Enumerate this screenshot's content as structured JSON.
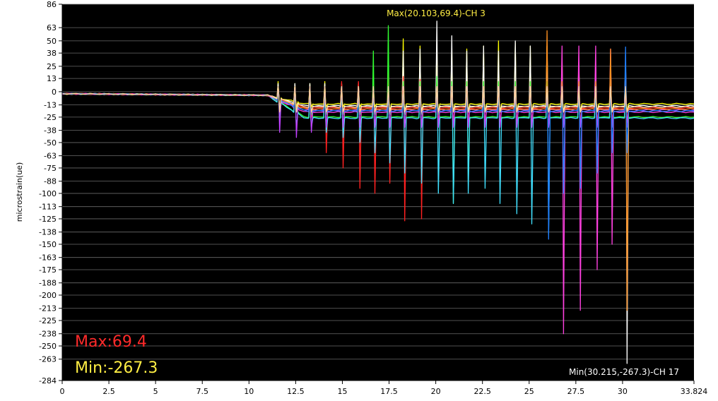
{
  "chart_data": {
    "type": "line",
    "ylabel": "microstrain(ue)",
    "xlabel": "",
    "xlim": [
      0,
      33.824
    ],
    "ylim": [
      -284,
      86
    ],
    "x_ticks": [
      "0",
      "2.5",
      "5",
      "7.5",
      "10",
      "12.5",
      "15",
      "17.5",
      "20",
      "22.5",
      "25",
      "27.5",
      "30",
      "33.824"
    ],
    "x_tick_values": [
      0,
      2.5,
      5,
      7.5,
      10,
      12.5,
      15,
      17.5,
      20,
      22.5,
      25,
      27.5,
      30,
      33.824
    ],
    "y_ticks": [
      "86",
      "63",
      "50",
      "38",
      "25",
      "13",
      "0",
      "-13",
      "-25",
      "-38",
      "-50",
      "-63",
      "-75",
      "-88",
      "-100",
      "-113",
      "-125",
      "-138",
      "-150",
      "-163",
      "-175",
      "-188",
      "-200",
      "-213",
      "-225",
      "-238",
      "-250",
      "-263",
      "-284"
    ],
    "y_tick_values": [
      86,
      63,
      50,
      38,
      25,
      13,
      0,
      -13,
      -25,
      -38,
      -50,
      -63,
      -75,
      -88,
      -100,
      -113,
      -125,
      -138,
      -150,
      -163,
      -175,
      -188,
      -200,
      -213,
      -225,
      -238,
      -250,
      -263,
      -284
    ],
    "grid": true,
    "background": "#000000",
    "annotations": {
      "max_label": "Max(20.103,69.4)-CH 3",
      "max_point": {
        "x": 20.103,
        "y": 69.4
      },
      "min_label": "Min(30.215,-267.3)-CH 17",
      "min_point": {
        "x": 30.215,
        "y": -267.3
      },
      "max_summary": "Max:69.4",
      "min_summary": "Min:-267.3"
    },
    "event_times": [
      11.6,
      12.5,
      13.3,
      14.1,
      15.0,
      15.9,
      16.7,
      17.5,
      18.3,
      19.2,
      20.1,
      20.9,
      21.7,
      22.6,
      23.4,
      24.3,
      25.1,
      26.0,
      26.8,
      27.7,
      28.6,
      29.4,
      30.2
    ],
    "series": [
      {
        "color": "#ffff00",
        "baseline_end": -12,
        "peaks": [
          10,
          8,
          8,
          10,
          8,
          8,
          8,
          8,
          52,
          45,
          50,
          45,
          42,
          45,
          50,
          48,
          45,
          45,
          30,
          28,
          25,
          25,
          25
        ],
        "dips": [
          -20,
          -15,
          -15,
          -15,
          -15,
          -15,
          -15,
          -20,
          -20,
          -20,
          -20,
          -20,
          -20,
          -20,
          -20,
          -20,
          -20,
          -20,
          -20,
          -20,
          -20,
          -20,
          -20
        ]
      },
      {
        "color": "#ffffff",
        "baseline_end": -14,
        "peaks": [
          8,
          8,
          8,
          8,
          8,
          8,
          8,
          8,
          40,
          42,
          69.4,
          55,
          40,
          45,
          40,
          50,
          45,
          45,
          25,
          25,
          25,
          25,
          25
        ],
        "dips": [
          -20,
          -20,
          -20,
          -20,
          -20,
          -20,
          -20,
          -20,
          -20,
          -20,
          -20,
          -20,
          -20,
          -20,
          -20,
          -20,
          -20,
          -20,
          -20,
          -20,
          -20,
          -20,
          -267.3
        ]
      },
      {
        "color": "#ff2020",
        "baseline_end": -16,
        "peaks": [
          5,
          5,
          5,
          5,
          10,
          10,
          12,
          20,
          15,
          12,
          12,
          10,
          10,
          10,
          10,
          10,
          10,
          10,
          10,
          10,
          10,
          10,
          10
        ],
        "dips": [
          -20,
          -20,
          -25,
          -60,
          -75,
          -95,
          -100,
          -90,
          -127,
          -125,
          -30,
          -30,
          -30,
          -30,
          -30,
          -30,
          -30,
          -30,
          -30,
          -30,
          -30,
          -30,
          -30
        ]
      },
      {
        "color": "#30ff30",
        "baseline_end": -25,
        "peaks": [
          5,
          5,
          5,
          5,
          5,
          5,
          40,
          65,
          10,
          10,
          15,
          10,
          10,
          10,
          10,
          10,
          10,
          10,
          10,
          10,
          10,
          10,
          10
        ],
        "dips": [
          -20,
          -20,
          -20,
          -20,
          -20,
          -20,
          -20,
          -20,
          -20,
          -20,
          -20,
          -110,
          -90,
          -30,
          -30,
          -30,
          -30,
          -30,
          -30,
          -30,
          -30,
          -30,
          -30
        ]
      },
      {
        "color": "#40e0ff",
        "baseline_end": -26,
        "peaks": [
          5,
          5,
          5,
          5,
          5,
          5,
          5,
          5,
          5,
          5,
          5,
          5,
          5,
          5,
          5,
          5,
          5,
          5,
          5,
          5,
          5,
          5,
          5
        ],
        "dips": [
          -30,
          -35,
          -35,
          -40,
          -45,
          -50,
          -60,
          -70,
          -80,
          -90,
          -100,
          -110,
          -100,
          -95,
          -110,
          -120,
          -130,
          -140,
          -30,
          -30,
          -30,
          -30,
          -30
        ]
      },
      {
        "color": "#c040ff",
        "baseline_end": -18,
        "peaks": [
          5,
          5,
          5,
          5,
          5,
          5,
          5,
          5,
          5,
          5,
          5,
          5,
          5,
          5,
          5,
          5,
          5,
          5,
          5,
          5,
          5,
          5,
          5
        ],
        "dips": [
          -40,
          -45,
          -40,
          -35,
          -35,
          -35,
          -35,
          -35,
          -35,
          -35,
          -35,
          -35,
          -35,
          -35,
          -35,
          -35,
          -35,
          -35,
          -35,
          -35,
          -35,
          -35,
          -35
        ]
      },
      {
        "color": "#ff40e0",
        "baseline_end": -20,
        "peaks": [
          5,
          5,
          5,
          5,
          5,
          5,
          5,
          5,
          5,
          5,
          5,
          5,
          5,
          5,
          5,
          5,
          5,
          5,
          45,
          45,
          45,
          42,
          30
        ],
        "dips": [
          -20,
          -20,
          -20,
          -20,
          -20,
          -20,
          -20,
          -20,
          -20,
          -20,
          -20,
          -20,
          -20,
          -20,
          -20,
          -20,
          -20,
          -20,
          -238,
          -215,
          -175,
          -150,
          -30
        ]
      },
      {
        "color": "#ff9020",
        "baseline_end": -17,
        "peaks": [
          5,
          5,
          5,
          5,
          5,
          5,
          5,
          5,
          5,
          5,
          5,
          5,
          5,
          5,
          5,
          5,
          5,
          60,
          10,
          10,
          10,
          42,
          10
        ],
        "dips": [
          -20,
          -20,
          -20,
          -20,
          -20,
          -20,
          -20,
          -20,
          -20,
          -20,
          -20,
          -20,
          -20,
          -20,
          -20,
          -20,
          -20,
          -20,
          -20,
          -20,
          -20,
          -20,
          -215
        ]
      },
      {
        "color": "#2080ff",
        "baseline_end": -19,
        "peaks": [
          5,
          5,
          5,
          5,
          5,
          5,
          5,
          5,
          5,
          5,
          5,
          5,
          5,
          5,
          5,
          5,
          5,
          5,
          5,
          5,
          5,
          5,
          44
        ],
        "dips": [
          -20,
          -20,
          -20,
          -20,
          -20,
          -20,
          -20,
          -20,
          -20,
          -20,
          -20,
          -20,
          -20,
          -20,
          -20,
          -20,
          -20,
          -145,
          -100,
          -95,
          -80,
          -60,
          -60
        ]
      },
      {
        "color": "#ffd0a0",
        "baseline_end": -15,
        "peaks": [
          5,
          5,
          5,
          5,
          5,
          5,
          5,
          5,
          5,
          5,
          5,
          5,
          5,
          5,
          5,
          5,
          5,
          5,
          5,
          5,
          5,
          5,
          5
        ],
        "dips": [
          -20,
          -20,
          -20,
          -20,
          -20,
          -20,
          -20,
          -20,
          -20,
          -20,
          -20,
          -20,
          -20,
          -20,
          -20,
          -20,
          -20,
          -20,
          -20,
          -20,
          -20,
          -20,
          -20
        ]
      }
    ]
  }
}
